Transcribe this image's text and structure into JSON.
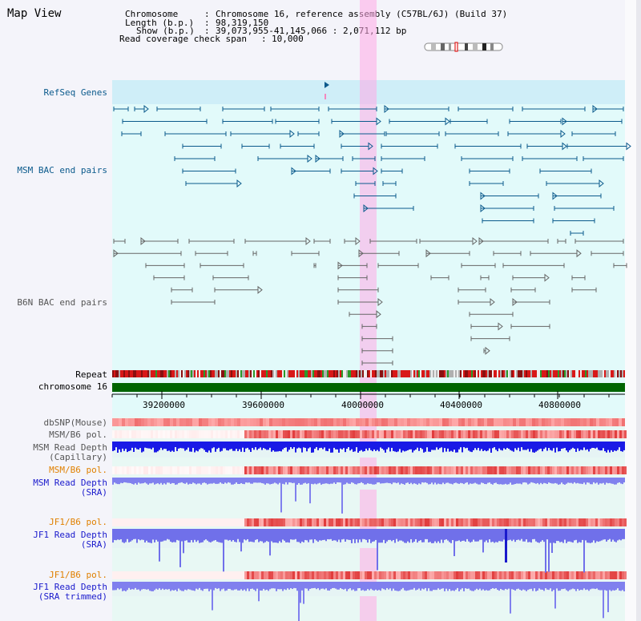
{
  "title": "Map View",
  "header": {
    "chromosome_label": "Chromosome",
    "chromosome_value": "Chromosome 16, reference assembly (C57BL/6J) (Build 37)",
    "length_label": "Length (b.p.)",
    "length_value": "98,319,150",
    "show_label": "Show (b.p.)",
    "show_value": "39,073,955-41,145,066 : 2,071,112 bp",
    "coverage_label": "Read coverage check span",
    "coverage_value": "10,000"
  },
  "tracks": {
    "refseq": "RefSeq Genes",
    "msm_bac": "MSM BAC end pairs",
    "b6n_bac": "B6N BAC end pairs",
    "repeat": "Repeat",
    "chromosome": "chromosome 16",
    "dbsnp": "dbSNP(Mouse)",
    "msm_b6_pol_1": "MSM/B6 pol.",
    "msm_depth_cap_1": "MSM Read Depth",
    "msm_depth_cap_2": "(Capillary)",
    "msm_b6_pol_2": "MSM/B6 pol.",
    "msm_depth_sra_1": "MSM Read Depth",
    "msm_depth_sra_2": "(SRA)",
    "jf1_b6_pol_1": "JF1/B6 pol.",
    "jf1_depth_sra_1": "JF1 Read Depth",
    "jf1_depth_sra_2": "(SRA)",
    "jf1_b6_pol_2": "JF1/B6 pol.",
    "jf1_depth_trim_1": "JF1 Read Depth",
    "jf1_depth_trim_2": "(SRA trimmed)"
  },
  "axis": {
    "ticks": [
      "39200000",
      "39600000",
      "40000000",
      "40400000",
      "40800000"
    ]
  },
  "colors": {
    "teal_track": "#0b5a8c",
    "navy_label": "#1a1acc",
    "orange_label": "#e08000",
    "chromosome_bar": "#006400",
    "highlight": "#ffaae6",
    "depth_capillary": "#1a1ae6",
    "depth_sra": "#8080ee",
    "pol_red": "#e82020"
  }
}
